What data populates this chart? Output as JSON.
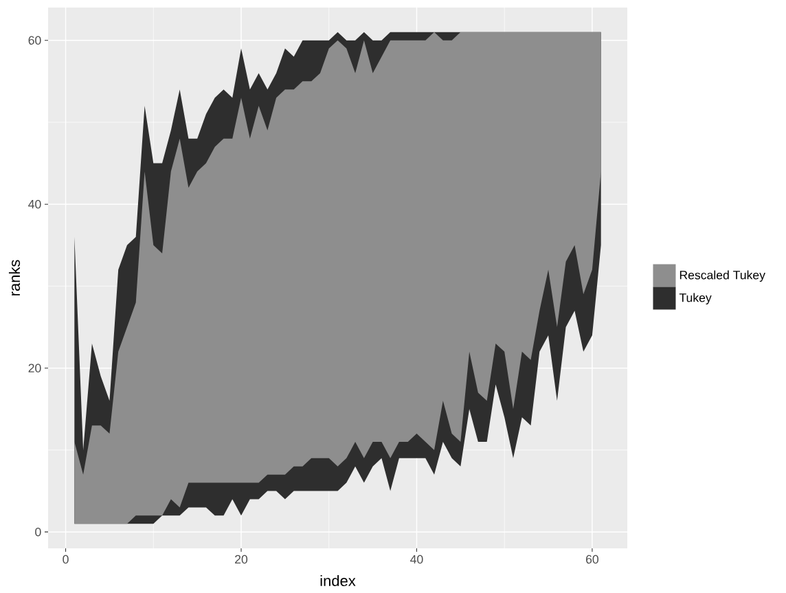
{
  "chart_data": {
    "type": "area",
    "xlabel": "index",
    "ylabel": "ranks",
    "x": [
      1,
      2,
      3,
      4,
      5,
      6,
      7,
      8,
      9,
      10,
      11,
      12,
      13,
      14,
      15,
      16,
      17,
      18,
      19,
      20,
      21,
      22,
      23,
      24,
      25,
      26,
      27,
      28,
      29,
      30,
      31,
      32,
      33,
      34,
      35,
      36,
      37,
      38,
      39,
      40,
      41,
      42,
      43,
      44,
      45,
      46,
      47,
      48,
      49,
      50,
      51,
      52,
      53,
      54,
      55,
      56,
      57,
      58,
      59,
      60,
      61
    ],
    "series": [
      {
        "name": "Tukey",
        "color": "#2e2e2e",
        "values": [
          null,
          null,
          null,
          null,
          null,
          null,
          null,
          null,
          null,
          null,
          null,
          null,
          null,
          null,
          null,
          null,
          null,
          null,
          null,
          null,
          null,
          null,
          null,
          null,
          null,
          null,
          null,
          null,
          null,
          null,
          null,
          null,
          null,
          null,
          null,
          null,
          null,
          null,
          null,
          null,
          null,
          null,
          null,
          null,
          null,
          null,
          null,
          null,
          null,
          null,
          null,
          null,
          null,
          null,
          null,
          null,
          null,
          null,
          null,
          null,
          null
        ],
        "upper": [
          36,
          10,
          23,
          19,
          16,
          32,
          35,
          36,
          52,
          45,
          45,
          49,
          54,
          48,
          48,
          51,
          53,
          54,
          53,
          59,
          54,
          56,
          54,
          56,
          59,
          58,
          60,
          60,
          60,
          60,
          61,
          60,
          60,
          61,
          60,
          60,
          61,
          61,
          61,
          61,
          61,
          61,
          61,
          61,
          61,
          61,
          61,
          61,
          61,
          61,
          61,
          61,
          61,
          61,
          61,
          61,
          61,
          61,
          61,
          61,
          61
        ],
        "lower": [
          1,
          1,
          1,
          1,
          1,
          1,
          1,
          1,
          1,
          1,
          2,
          2,
          2,
          3,
          3,
          3,
          2,
          2,
          4,
          2,
          4,
          4,
          5,
          5,
          4,
          5,
          5,
          5,
          5,
          5,
          5,
          6,
          8,
          6,
          8,
          9,
          5,
          9,
          9,
          9,
          9,
          7,
          11,
          9,
          8,
          15,
          11,
          11,
          18,
          14,
          9,
          14,
          13,
          22,
          24,
          16,
          25,
          27,
          22,
          24,
          35
        ]
      },
      {
        "name": "Rescaled Tukey",
        "color": "#8e8e8e",
        "values": [
          null,
          null,
          null,
          null,
          null,
          null,
          null,
          null,
          null,
          null,
          null,
          null,
          null,
          null,
          null,
          null,
          null,
          null,
          null,
          null,
          null,
          null,
          null,
          null,
          null,
          null,
          null,
          null,
          null,
          null,
          null,
          null,
          null,
          null,
          null,
          null,
          null,
          null,
          null,
          null,
          null,
          null,
          null,
          null,
          null,
          null,
          null,
          null,
          null,
          null,
          null,
          null,
          null,
          null,
          null,
          null,
          null,
          null,
          null,
          null,
          null
        ],
        "upper": [
          11,
          7,
          13,
          13,
          12,
          22,
          25,
          28,
          44,
          35,
          34,
          44,
          48,
          42,
          44,
          45,
          47,
          48,
          48,
          53,
          48,
          52,
          49,
          53,
          54,
          54,
          55,
          55,
          56,
          59,
          60,
          59,
          56,
          60,
          56,
          58,
          60,
          60,
          60,
          60,
          60,
          61,
          60,
          60,
          61,
          61,
          61,
          61,
          61,
          61,
          61,
          61,
          61,
          61,
          61,
          61,
          61,
          61,
          61,
          61,
          61
        ],
        "lower": [
          1,
          1,
          1,
          1,
          1,
          1,
          1,
          2,
          2,
          2,
          2,
          4,
          3,
          6,
          6,
          6,
          6,
          6,
          6,
          6,
          6,
          6,
          7,
          7,
          7,
          8,
          8,
          9,
          9,
          9,
          8,
          9,
          11,
          9,
          11,
          11,
          9,
          11,
          11,
          12,
          11,
          10,
          16,
          12,
          11,
          22,
          17,
          16,
          23,
          22,
          15,
          22,
          21,
          27,
          32,
          25,
          33,
          35,
          29,
          32,
          44
        ]
      }
    ],
    "xlim": [
      -2,
      64
    ],
    "ylim": [
      -2,
      64
    ],
    "xticks": [
      0,
      {
        "value": 10,
        "label": null
      },
      20,
      {
        "value": 30,
        "label": null
      },
      40,
      {
        "value": 50,
        "label": null
      },
      60
    ],
    "yticks": [
      0,
      {
        "value": 10,
        "label": null
      },
      20,
      {
        "value": 30,
        "label": null
      },
      40,
      {
        "value": 50,
        "label": null
      },
      60
    ],
    "grid": true,
    "legend": "right"
  }
}
